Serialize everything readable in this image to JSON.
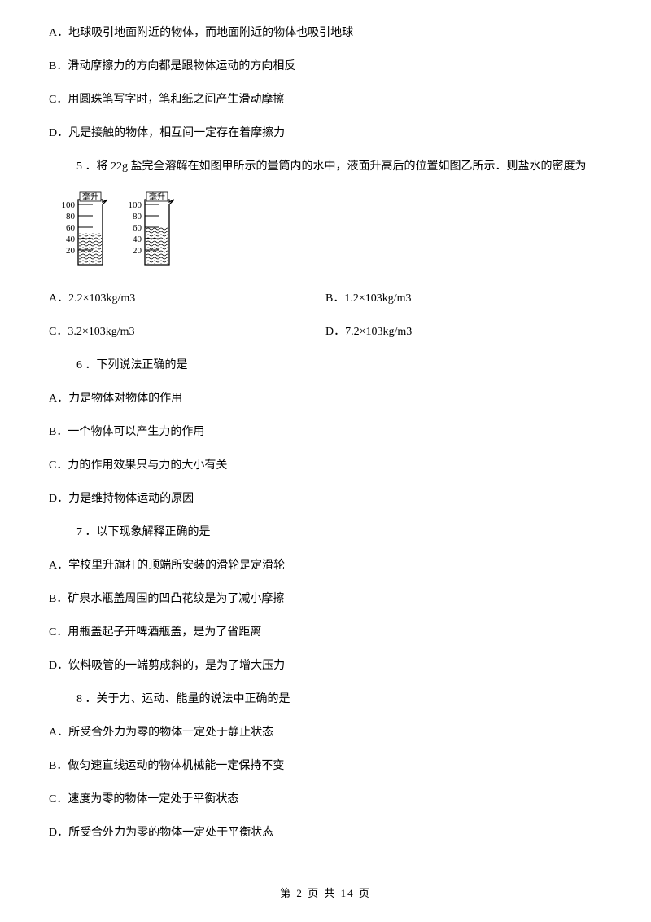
{
  "q4": {
    "A": "A．地球吸引地面附近的物体，而地面附近的物体也吸引地球",
    "B": "B．滑动摩擦力的方向都是跟物体运动的方向相反",
    "C": "C．用圆珠笔写字时，笔和纸之间产生滑动摩擦",
    "D": "D．凡是接触的物体，相互间一定存在着摩擦力"
  },
  "q5": {
    "stem": "5 ．将 22g 盐完全溶解在如图甲所示的量筒内的水中，液面升高后的位置如图乙所示．则盐水的密度为",
    "A": "A．2.2×103kg/m3",
    "B": "B．1.2×103kg/m3",
    "C": "C．3.2×103kg/m3",
    "D": "D．7.2×103kg/m3"
  },
  "q6": {
    "stem": "6 ．下列说法正确的是",
    "A": "A．力是物体对物体的作用",
    "B": "B．一个物体可以产生力的作用",
    "C": "C．力的作用效果只与力的大小有关",
    "D": "D．力是维持物体运动的原因"
  },
  "q7": {
    "stem": "7 ．以下现象解释正确的是",
    "A": "A．学校里升旗杆的顶端所安装的滑轮是定滑轮",
    "B": "B．矿泉水瓶盖周围的凹凸花纹是为了减小摩擦",
    "C": "C．用瓶盖起子开啤酒瓶盖，是为了省距离",
    "D": "D．饮料吸管的一端剪成斜的，是为了增大压力"
  },
  "q8": {
    "stem": "8 ．关于力、运动、能量的说法中正确的是",
    "A": "A．所受合外力为零的物体一定处于静止状态",
    "B": "B．做匀速直线运动的物体机械能一定保持不变",
    "C": "C．速度为零的物体一定处于平衡状态",
    "D": "D．所受合外力为零的物体一定处于平衡状态"
  },
  "beakers": {
    "scale_values": [
      "100",
      "80",
      "60",
      "40",
      "20"
    ],
    "unit_label": "毫升",
    "left_fill_level": 50,
    "right_fill_level": 60,
    "stroke_color": "#000000",
    "fill_pattern_color": "#000000",
    "background": "#ffffff",
    "font_size": 11,
    "tick_spacing": 14,
    "beaker_width": 30,
    "beaker_height": 80,
    "spout_width": 6
  },
  "footer": "第 2 页 共 14 页"
}
